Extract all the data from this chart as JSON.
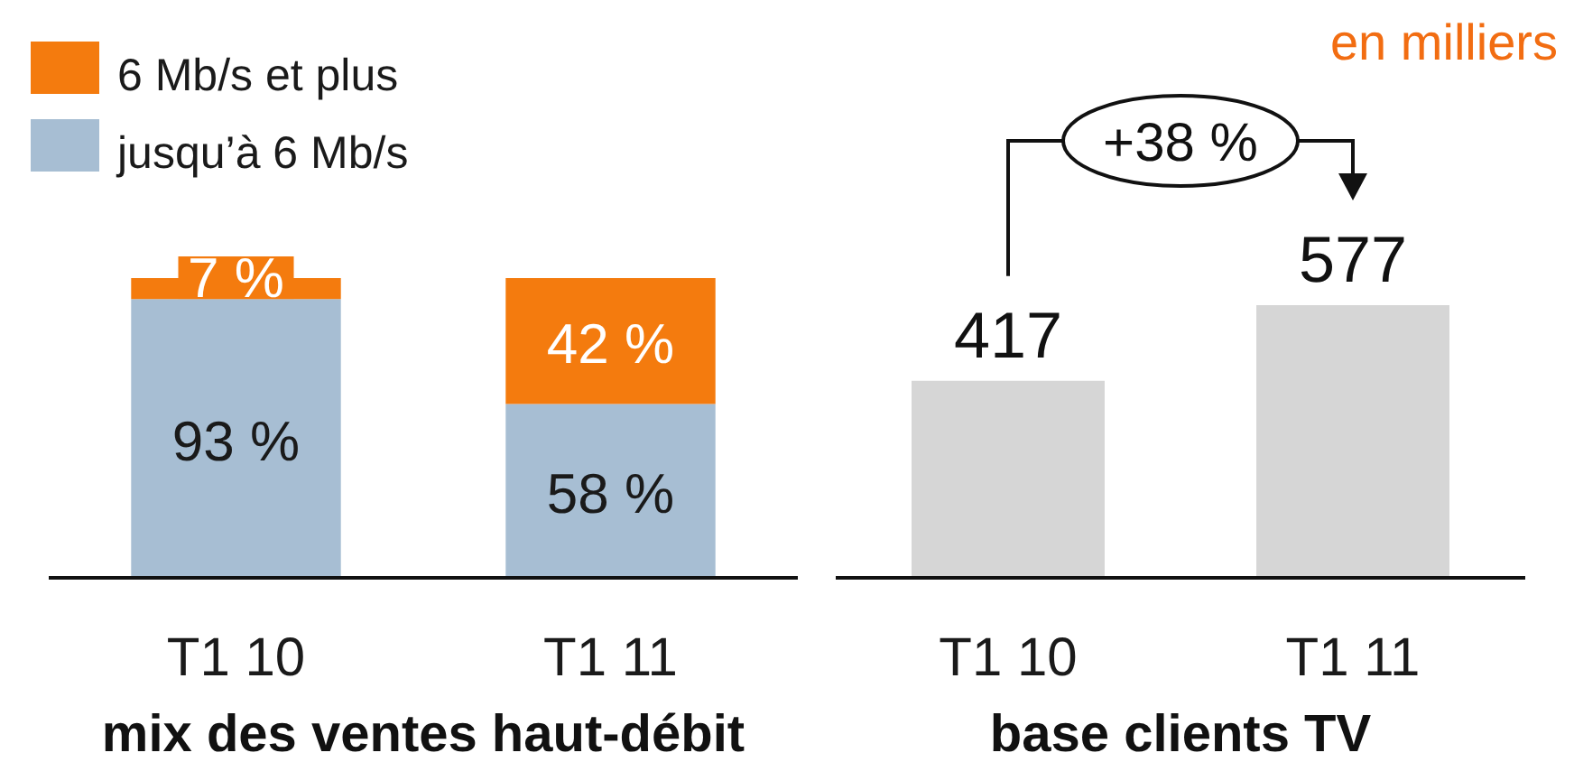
{
  "chart_data": [
    {
      "type": "bar",
      "stacked": true,
      "categories": [
        "T1 10",
        "T1 11"
      ],
      "series": [
        {
          "name": "jusqu’à 6 Mb/s",
          "color": "#a7bed3",
          "values": [
            93,
            58
          ],
          "value_labels": [
            "93 %",
            "58 %"
          ]
        },
        {
          "name": "6 Mb/s et plus",
          "color": "#f47b0e",
          "values": [
            7,
            42
          ],
          "value_labels": [
            "7 %",
            "42 %"
          ]
        }
      ],
      "xlabel": "mix des ventes haut-débit",
      "legend": "top left"
    },
    {
      "type": "bar",
      "categories": [
        "T1 10",
        "T1 11"
      ],
      "values": [
        417,
        577
      ],
      "color": "#d6d6d6",
      "data_labels": true,
      "xlabel": "base clients TV",
      "subtitle": "en milliers",
      "annotations": [
        "+38 %"
      ]
    }
  ]
}
